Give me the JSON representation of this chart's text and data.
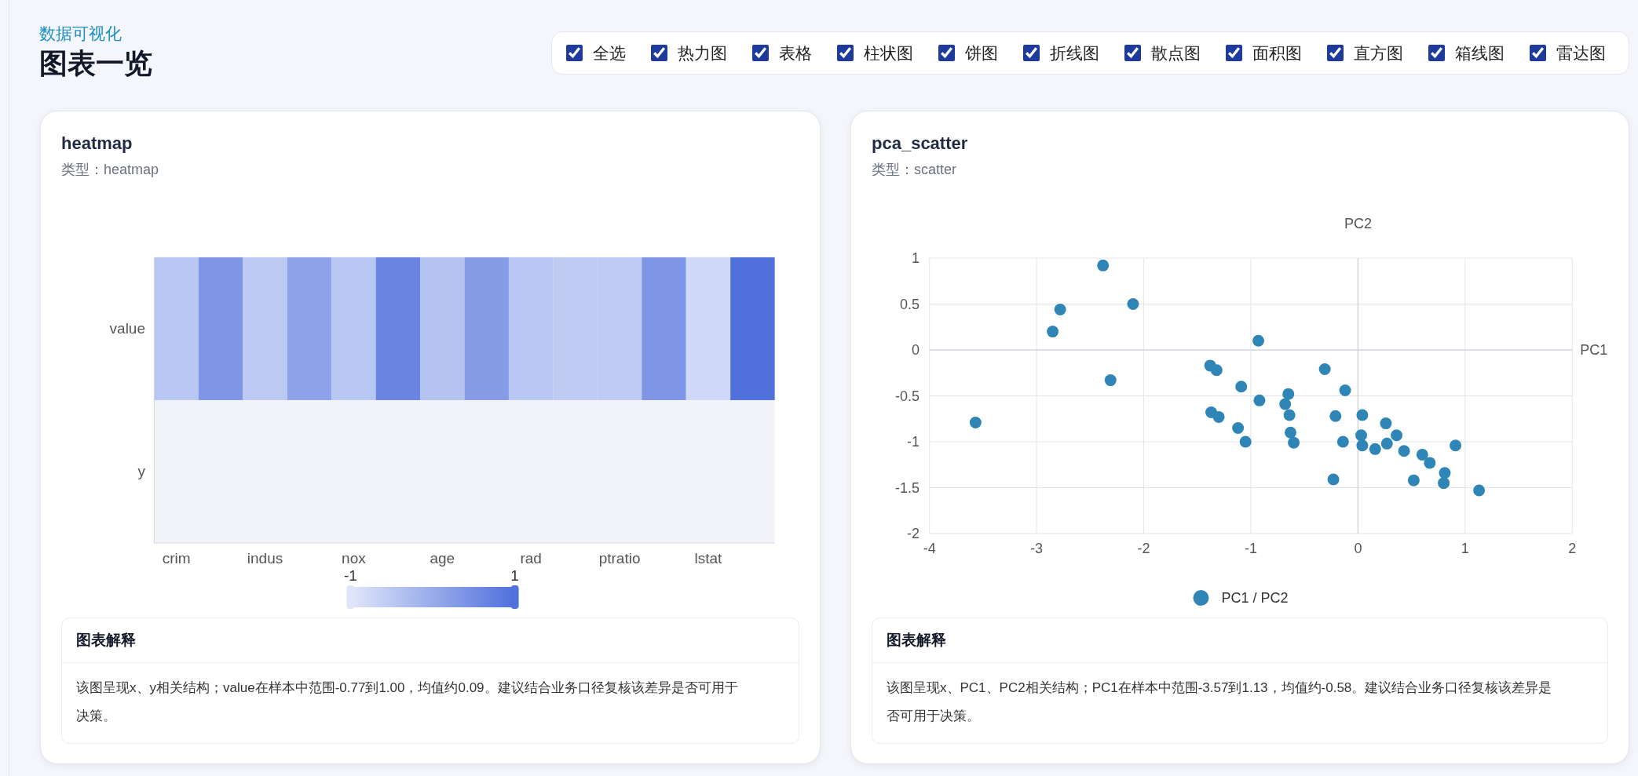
{
  "chart_data": [
    {
      "type": "other",
      "title": "图表一览",
      "subtitle": "数据可视化",
      "annotations": [
        "全选",
        "热力图",
        "表格",
        "柱状图",
        "饼图",
        "折线图",
        "散点图",
        "面积图",
        "直方图",
        "箱线图",
        "雷达图"
      ]
    },
    {
      "type": "heatmap",
      "title": "heatmap",
      "subtitle": "类型：heatmap",
      "categories": [
        "crim",
        null,
        "indus",
        null,
        "nox",
        null,
        "age",
        null,
        "rad",
        null,
        "ptratio",
        null,
        "lstat",
        null
      ],
      "y_categories": [
        "value",
        "y"
      ],
      "cells": [
        [
          -0.45,
          0.35,
          -0.5,
          0.15,
          -0.45,
          0.65,
          -0.4,
          0.25,
          -0.45,
          -0.55,
          -0.55,
          0.35,
          -0.77,
          1.0
        ],
        [
          null,
          null,
          null,
          null,
          null,
          null,
          null,
          null,
          null,
          null,
          null,
          null,
          null,
          null
        ]
      ],
      "clim": [
        -1,
        1
      ],
      "cticks": [
        -1,
        1
      ],
      "annotations": [
        "图表解释",
        "该图呈现x、y相关结构；value在样本中范围-0.77到1.00，均值约0.09。建议结合业务口径复核该差异是否可用于决策。"
      ]
    },
    {
      "type": "scatter",
      "title": "pca_scatter",
      "subtitle": "类型：scatter",
      "xlabel": "PC1",
      "ylabel": "PC2",
      "series": [
        {
          "name": "PC1 / PC2",
          "color": "#2f86b6",
          "x": [
            -2.38,
            -2.1,
            -2.78,
            -2.85,
            -2.31,
            -3.57,
            -0.93,
            -1.38,
            -1.32,
            -1.09,
            -0.92,
            -1.37,
            -1.3,
            -1.12,
            -1.05,
            -0.65,
            -0.68,
            -0.64,
            -0.63,
            -0.6,
            -0.31,
            -0.12,
            -0.21,
            -0.14,
            -0.23,
            0.04,
            0.03,
            0.04,
            0.16,
            0.26,
            0.27,
            0.36,
            0.43,
            0.6,
            0.67,
            0.81,
            0.52,
            0.8,
            0.91,
            1.13
          ],
          "values": [
            0.92,
            0.5,
            0.44,
            0.2,
            -0.33,
            -0.79,
            0.1,
            -0.17,
            -0.22,
            -0.4,
            -0.55,
            -0.68,
            -0.73,
            -0.85,
            -1.0,
            -0.48,
            -0.59,
            -0.71,
            -0.9,
            -1.01,
            -0.21,
            -0.44,
            -0.72,
            -1.0,
            -1.41,
            -0.71,
            -0.93,
            -1.04,
            -1.08,
            -0.8,
            -1.02,
            -0.93,
            -1.1,
            -1.14,
            -1.23,
            -1.34,
            -1.42,
            -1.45,
            -1.04,
            -1.53
          ]
        }
      ],
      "xlim": [
        -4,
        2
      ],
      "ylim": [
        -2,
        1
      ],
      "xticks": [
        -4,
        -3,
        -2,
        -1,
        0,
        1,
        2
      ],
      "yticks": [
        -2,
        -1.5,
        -1,
        -0.5,
        0,
        0.5,
        1
      ],
      "grid": true,
      "legend": "bottom",
      "marker": "circle",
      "annotations": [
        "图表解释",
        "该图呈现x、PC1、PC2相关结构；PC1在样本中范围-3.57到1.13，均值约-0.58。建议结合业务口径复核该差异是否可用于决策。"
      ]
    }
  ]
}
